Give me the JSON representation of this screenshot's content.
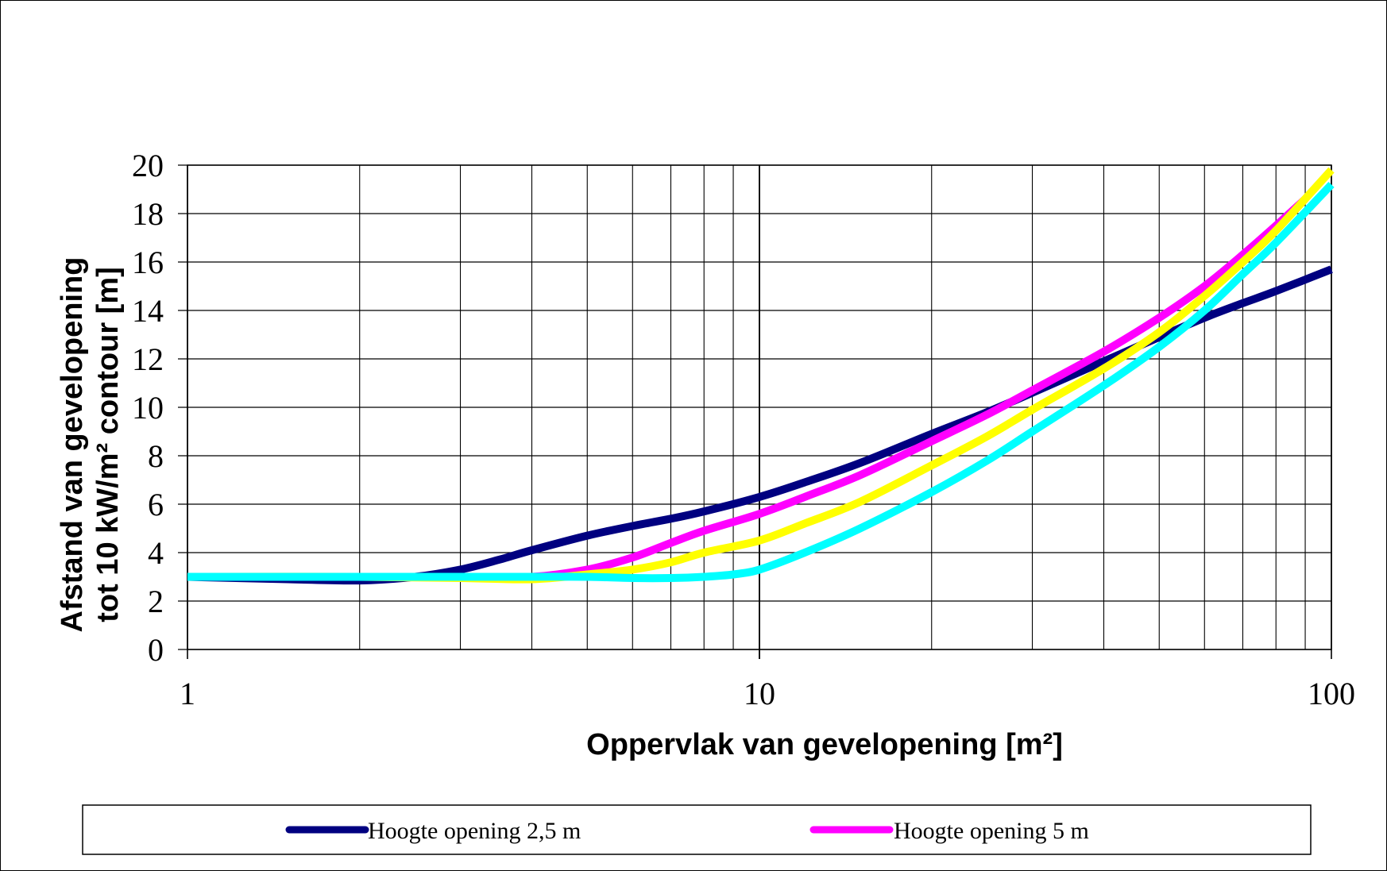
{
  "chart_data": {
    "type": "line",
    "title": "",
    "xlabel": "Oppervlak van gevelopening [m²]",
    "ylabel_lines": [
      "Afstand van gevelopening",
      "tot 10 kW/m² contour [m]"
    ],
    "x_scale": "log",
    "xlim": [
      1,
      100
    ],
    "ylim": [
      0,
      20
    ],
    "x_ticks": [
      "1",
      "10",
      "100"
    ],
    "y_ticks": [
      "0",
      "2",
      "4",
      "6",
      "8",
      "10",
      "12",
      "14",
      "16",
      "18",
      "20"
    ],
    "grid": true,
    "legend_position": "bottom",
    "series": [
      {
        "name": "Hoogte opening 2,5 m",
        "color": "#000080",
        "x": [
          1,
          1.5,
          2,
          2.5,
          3,
          3.5,
          4,
          5,
          6,
          7,
          8,
          10,
          12,
          15,
          20,
          25,
          30,
          40,
          50,
          60,
          70,
          80,
          100
        ],
        "y": [
          3.0,
          2.9,
          2.85,
          3.0,
          3.3,
          3.7,
          4.1,
          4.7,
          5.1,
          5.4,
          5.7,
          6.3,
          6.9,
          7.7,
          8.9,
          9.8,
          10.6,
          11.9,
          12.9,
          13.7,
          14.3,
          14.8,
          15.7
        ]
      },
      {
        "name": "Hoogte opening 5 m",
        "color": "#ff00ff",
        "x": [
          1,
          2,
          3,
          4,
          5,
          6,
          7,
          8,
          10,
          12,
          15,
          20,
          25,
          30,
          40,
          50,
          60,
          70,
          80,
          90
        ],
        "y": [
          3.0,
          3.0,
          3.0,
          3.0,
          3.3,
          3.8,
          4.4,
          4.9,
          5.6,
          6.3,
          7.2,
          8.6,
          9.7,
          10.7,
          12.3,
          13.7,
          15.0,
          16.3,
          17.5,
          18.6
        ]
      },
      {
        "color": "#ffff00",
        "x": [
          1,
          2,
          3,
          4,
          5,
          6,
          7,
          8,
          10,
          12,
          15,
          20,
          25,
          30,
          40,
          50,
          60,
          70,
          80,
          100
        ],
        "y": [
          3.0,
          3.0,
          2.95,
          2.9,
          3.1,
          3.3,
          3.6,
          4.0,
          4.5,
          5.2,
          6.1,
          7.6,
          8.8,
          9.9,
          11.6,
          13.1,
          14.6,
          16.0,
          17.3,
          19.8
        ]
      },
      {
        "color": "#00ffff",
        "x": [
          1,
          2,
          3,
          4,
          5,
          6,
          7,
          8,
          9,
          10,
          12,
          15,
          20,
          25,
          30,
          40,
          50,
          60,
          70,
          80,
          100
        ],
        "y": [
          3.0,
          3.0,
          3.0,
          3.0,
          3.0,
          2.95,
          2.95,
          3.0,
          3.1,
          3.3,
          4.0,
          5.0,
          6.5,
          7.8,
          9.0,
          10.9,
          12.5,
          14.0,
          15.5,
          16.8,
          19.2
        ]
      }
    ]
  }
}
